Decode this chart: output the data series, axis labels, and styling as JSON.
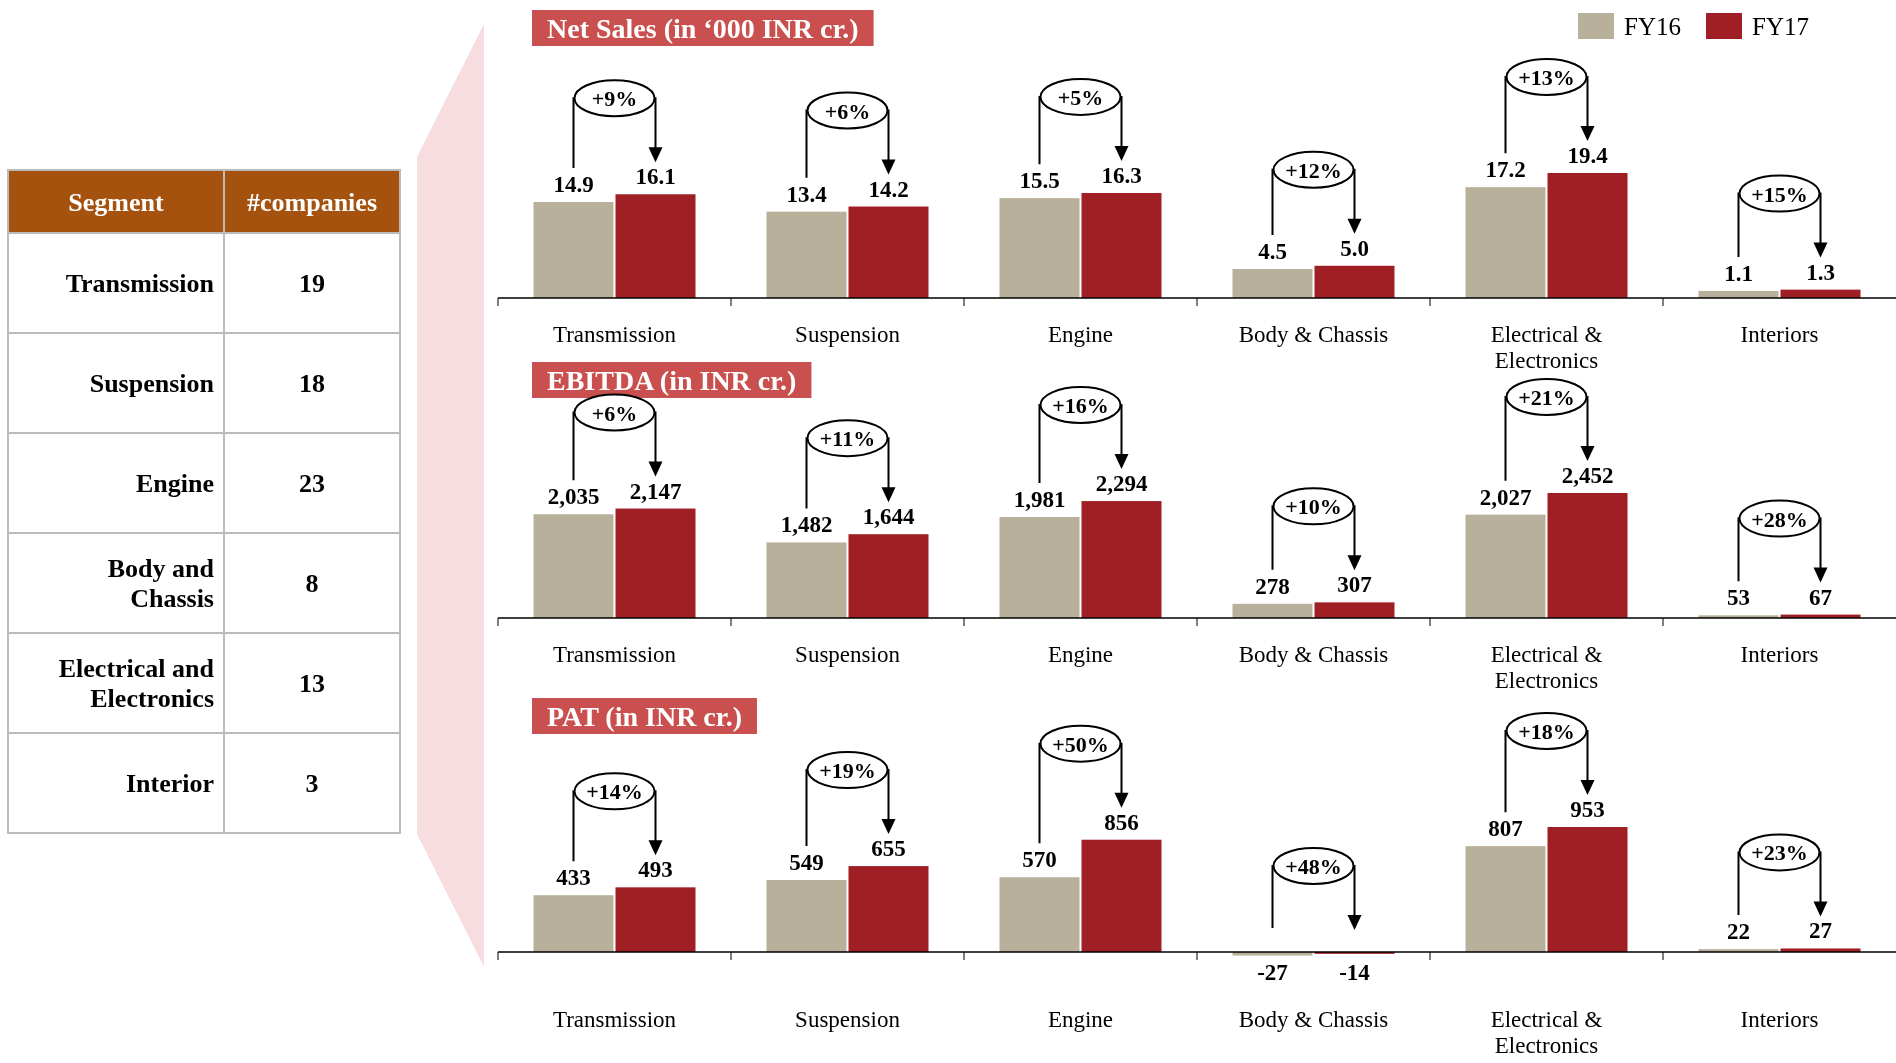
{
  "chart_data": [
    {
      "type": "other",
      "xlabel": "Segment",
      "ylabel": "#companies",
      "categories": [
        "Transmission",
        "Suspension",
        "Engine",
        "Body and Chassis",
        "Electrical and Electronics",
        "Interior"
      ],
      "values": [
        19,
        18,
        23,
        8,
        13,
        3
      ],
      "data_labels": true,
      "color": "#a5520f"
    },
    {
      "type": "bar",
      "title": "Net Sales (in ‘000 INR cr.)",
      "categories": [
        "Transmission",
        "Suspension",
        "Engine",
        "Body & Chassis",
        "Electrical & Electronics",
        "Interiors"
      ],
      "legend": "top right",
      "series": [
        {
          "name": "FY16",
          "color": "#b8b09a",
          "values": [
            14.9,
            13.4,
            15.5,
            4.5,
            17.2,
            1.1
          ],
          "value_labels": [
            "14.9",
            "13.4",
            "15.5",
            "4.5",
            "17.2",
            "1.1"
          ]
        },
        {
          "name": "FY17",
          "color": "#a01f24",
          "values": [
            16.1,
            14.2,
            16.3,
            5.0,
            19.4,
            1.3
          ],
          "value_labels": [
            "16.1",
            "14.2",
            "16.3",
            "5.0",
            "19.4",
            "1.3"
          ]
        }
      ],
      "annotations": [
        "+9%",
        "+6%",
        "+5%",
        "+12%",
        "+13%",
        "+15%"
      ]
    },
    {
      "type": "bar",
      "title": "EBITDA (in INR cr.)",
      "categories": [
        "Transmission",
        "Suspension",
        "Engine",
        "Body & Chassis",
        "Electrical & Electronics",
        "Interiors"
      ],
      "series": [
        {
          "color": "#b8b09a",
          "values": [
            2035,
            1482,
            1981,
            278,
            2027,
            53
          ],
          "value_labels": [
            "2,035",
            "1,482",
            "1,981",
            "278",
            "2,027",
            "53"
          ]
        },
        {
          "color": "#a01f24",
          "values": [
            2147,
            1644,
            2294,
            307,
            2452,
            67
          ],
          "value_labels": [
            "2,147",
            "1,644",
            "2,294",
            "307",
            "2,452",
            "67"
          ]
        }
      ],
      "annotations": [
        "+6%",
        "+11%",
        "+16%",
        "+10%",
        "+21%",
        "+28%"
      ]
    },
    {
      "type": "bar",
      "title": "PAT (in INR cr.)",
      "categories": [
        "Transmission",
        "Suspension",
        "Engine",
        "Body & Chassis",
        "Electrical & Electronics",
        "Interiors"
      ],
      "series": [
        {
          "color": "#b8b09a",
          "values": [
            433,
            549,
            570,
            -27,
            807,
            22
          ],
          "value_labels": [
            "433",
            "549",
            "570",
            "-27",
            "807",
            "22"
          ]
        },
        {
          "color": "#a01f24",
          "values": [
            493,
            655,
            856,
            -14,
            953,
            27
          ],
          "value_labels": [
            "493",
            "655",
            "856",
            "-14",
            "953",
            "27"
          ]
        }
      ],
      "annotations": [
        "+14%",
        "+19%",
        "+50%",
        "+48%",
        "+18%",
        "+23%"
      ]
    }
  ]
}
